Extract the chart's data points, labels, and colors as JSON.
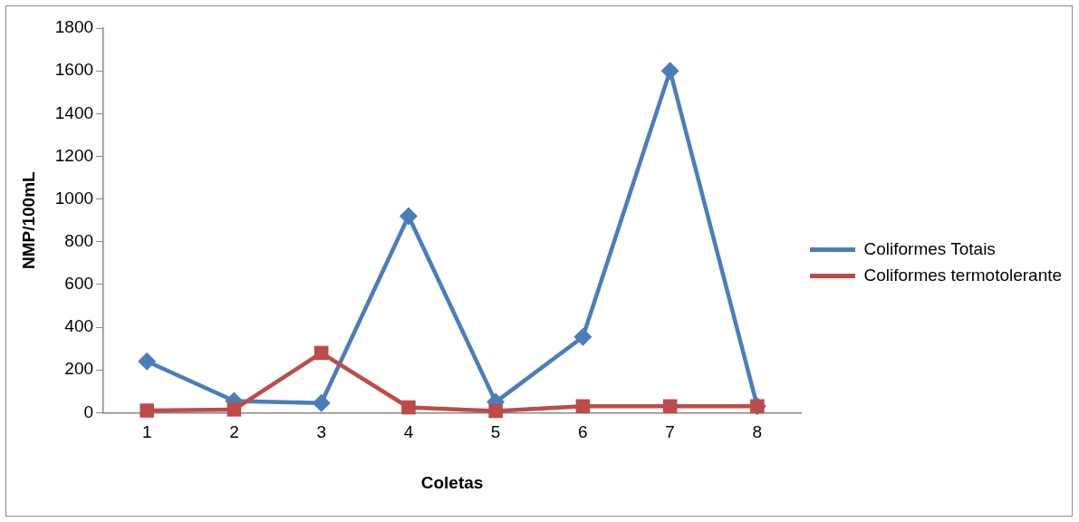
{
  "chart_data": {
    "type": "line",
    "xlabel": "Coletas",
    "ylabel": "NMP/100mL",
    "categories": [
      "1",
      "2",
      "3",
      "4",
      "5",
      "6",
      "7",
      "8"
    ],
    "series": [
      {
        "name": "Coliformes Totais",
        "color": "#4a7ebb",
        "marker": "diamond",
        "values": [
          240,
          55,
          45,
          920,
          50,
          355,
          1600,
          30
        ]
      },
      {
        "name": "Coliformes termotolerante",
        "color": "#be4b48",
        "marker": "square",
        "values": [
          10,
          15,
          280,
          25,
          8,
          30,
          30,
          30
        ]
      }
    ],
    "ylim": [
      0,
      1800
    ],
    "yticks": [
      0,
      200,
      400,
      600,
      800,
      1000,
      1200,
      1400,
      1600,
      1800
    ],
    "grid": false,
    "legend": "right"
  }
}
